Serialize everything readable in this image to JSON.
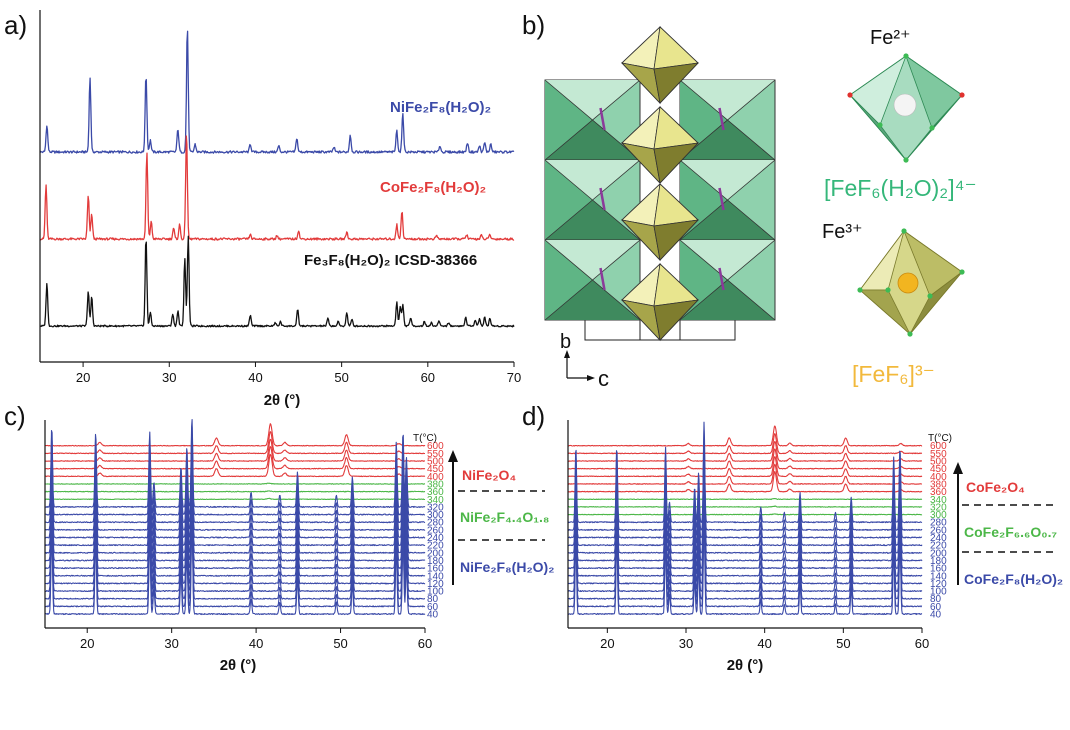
{
  "colors": {
    "blue": "#3b4aa8",
    "red": "#e23b3b",
    "green": "#4cb748",
    "black": "#111111",
    "teal": "#35b77a",
    "gold": "#f2b93c"
  },
  "panel_labels": {
    "a": "a)",
    "b": "b)",
    "c": "c)",
    "d": "d)"
  },
  "panel_a": {
    "xlabel": "2θ (°)",
    "labels": {
      "blue": "NiFe₂F₈(H₂O)₂",
      "red": "CoFe₂F₈(H₂O)₂",
      "black": "Fe₃F₈(H₂O)₂ ICSD-38366"
    }
  },
  "panel_b": {
    "axis_b": "b",
    "axis_c": "c",
    "fe2_label": "Fe²⁺",
    "fe3_label": "Fe³⁺",
    "fe2_formula": "[FeF₆(H₂O)₂]⁴⁻",
    "fe3_formula": "[FeF₆]³⁻"
  },
  "panel_c": {
    "xlabel": "2θ (°)",
    "temp_header": "T(°C)",
    "phase_labels": {
      "top": "NiFe₂O₄",
      "mid": "NiFe₂F₄.₄O₁.₈",
      "bottom": "NiFe₂F₈(H₂O)₂"
    }
  },
  "panel_d": {
    "xlabel": "2θ (°)",
    "temp_header": "T(°C)",
    "phase_labels": {
      "top": "CoFe₂O₄",
      "mid": "CoFe₂F₆.₆O₀.₇",
      "bottom": "CoFe₂F₈(H₂O)₂"
    }
  },
  "chart_data": [
    {
      "type": "line",
      "panel": "a",
      "xlabel": "2θ (°)",
      "xlim": [
        15,
        70
      ],
      "xticks": [
        20,
        30,
        40,
        50,
        60,
        70
      ],
      "series": [
        {
          "name": "NiFe₂F₈(H₂O)₂",
          "color": "#3b4aa8",
          "peaks": [
            [
              15.8,
              0.35
            ],
            [
              20.8,
              0.95
            ],
            [
              27.3,
              1.0
            ],
            [
              27.8,
              0.15
            ],
            [
              31.0,
              0.3
            ],
            [
              32.1,
              1.6
            ],
            [
              33.0,
              0.1
            ],
            [
              39.4,
              0.1
            ],
            [
              42.7,
              0.08
            ],
            [
              44.8,
              0.18
            ],
            [
              49.1,
              0.06
            ],
            [
              51.0,
              0.22
            ],
            [
              56.4,
              0.28
            ],
            [
              57.1,
              0.5
            ],
            [
              61.4,
              0.08
            ],
            [
              64.6,
              0.12
            ],
            [
              66.0,
              0.08
            ],
            [
              66.6,
              0.12
            ],
            [
              67.3,
              0.1
            ]
          ]
        },
        {
          "name": "CoFe₂F₈(H₂O)₂",
          "color": "#e23b3b",
          "peaks": [
            [
              15.7,
              0.75
            ],
            [
              20.6,
              0.6
            ],
            [
              21.0,
              0.35
            ],
            [
              27.4,
              1.2
            ],
            [
              27.9,
              0.25
            ],
            [
              30.5,
              0.15
            ],
            [
              31.2,
              0.2
            ],
            [
              32.0,
              1.5
            ],
            [
              39.4,
              0.06
            ],
            [
              42.5,
              0.05
            ],
            [
              45.0,
              0.12
            ],
            [
              50.6,
              0.1
            ],
            [
              56.4,
              0.2
            ],
            [
              57.0,
              0.4
            ],
            [
              61.0,
              0.05
            ],
            [
              64.5,
              0.06
            ],
            [
              66.2,
              0.05
            ],
            [
              67.2,
              0.06
            ]
          ]
        },
        {
          "name": "Fe₃F₈(H₂O)₂ ICSD-38366",
          "color": "#111111",
          "peaks": [
            [
              15.8,
              0.8
            ],
            [
              20.6,
              0.65
            ],
            [
              21.0,
              0.55
            ],
            [
              27.3,
              1.65
            ],
            [
              27.8,
              0.25
            ],
            [
              30.4,
              0.22
            ],
            [
              31.0,
              0.28
            ],
            [
              31.8,
              1.25
            ],
            [
              32.2,
              1.65
            ],
            [
              39.4,
              0.2
            ],
            [
              42.3,
              0.06
            ],
            [
              42.9,
              0.08
            ],
            [
              44.9,
              0.3
            ],
            [
              48.4,
              0.14
            ],
            [
              49.6,
              0.08
            ],
            [
              50.6,
              0.25
            ],
            [
              51.2,
              0.12
            ],
            [
              56.4,
              0.45
            ],
            [
              56.8,
              0.35
            ],
            [
              57.1,
              0.4
            ],
            [
              58.0,
              0.15
            ],
            [
              59.6,
              0.08
            ],
            [
              60.4,
              0.06
            ],
            [
              61.3,
              0.1
            ],
            [
              62.4,
              0.06
            ],
            [
              64.4,
              0.16
            ],
            [
              65.5,
              0.12
            ],
            [
              66.0,
              0.14
            ],
            [
              66.6,
              0.16
            ],
            [
              67.2,
              0.14
            ]
          ]
        }
      ]
    },
    {
      "type": "line",
      "panel": "c",
      "xlabel": "2θ (°)",
      "xlim": [
        15,
        60
      ],
      "xticks": [
        20,
        30,
        40,
        50,
        60
      ],
      "temperatures": [
        40,
        60,
        80,
        100,
        120,
        140,
        160,
        180,
        200,
        220,
        240,
        260,
        280,
        300,
        320,
        340,
        360,
        380,
        400,
        450,
        500,
        550,
        600
      ],
      "phase_by_temp": [
        "blue",
        "blue",
        "blue",
        "blue",
        "blue",
        "blue",
        "blue",
        "blue",
        "blue",
        "blue",
        "blue",
        "blue",
        "blue",
        "blue",
        "blue",
        "green",
        "green",
        "green",
        "red",
        "red",
        "red",
        "red",
        "red"
      ],
      "blue_peaks": [
        [
          15.8,
          0.8
        ],
        [
          21.0,
          0.75
        ],
        [
          27.4,
          0.75
        ],
        [
          27.9,
          0.25
        ],
        [
          31.1,
          0.4
        ],
        [
          31.8,
          0.6
        ],
        [
          32.4,
          0.9
        ],
        [
          39.4,
          0.15
        ],
        [
          42.8,
          0.12
        ],
        [
          44.9,
          0.35
        ],
        [
          49.5,
          0.12
        ],
        [
          51.4,
          0.3
        ],
        [
          56.6,
          0.65
        ],
        [
          57.4,
          0.75
        ],
        [
          57.8,
          0.5
        ]
      ],
      "green_peaks": [
        [
          41.5,
          0.04
        ]
      ],
      "red_peaks": [
        [
          21.5,
          0.15
        ],
        [
          35.3,
          0.35
        ],
        [
          41.7,
          1.0
        ],
        [
          43.4,
          0.15
        ],
        [
          50.7,
          0.5
        ],
        [
          56.9,
          0.1
        ]
      ]
    },
    {
      "type": "line",
      "panel": "d",
      "xlabel": "2θ (°)",
      "xlim": [
        15,
        60
      ],
      "xticks": [
        20,
        30,
        40,
        50,
        60
      ],
      "temperatures": [
        40,
        60,
        80,
        100,
        120,
        140,
        160,
        180,
        200,
        220,
        240,
        260,
        280,
        300,
        320,
        340,
        360,
        380,
        400,
        450,
        500,
        550,
        600
      ],
      "phase_by_temp": [
        "blue",
        "blue",
        "blue",
        "blue",
        "blue",
        "blue",
        "blue",
        "blue",
        "blue",
        "blue",
        "blue",
        "blue",
        "blue",
        "green",
        "green",
        "green",
        "red",
        "red",
        "red",
        "red",
        "red",
        "red",
        "red"
      ],
      "blue_peaks": [
        [
          16.0,
          0.75
        ],
        [
          21.2,
          0.75
        ],
        [
          27.4,
          0.75
        ],
        [
          27.9,
          0.2
        ],
        [
          31.1,
          0.35
        ],
        [
          31.6,
          0.5
        ],
        [
          32.3,
          1.0
        ],
        [
          39.5,
          0.15
        ],
        [
          42.5,
          0.1
        ],
        [
          44.5,
          0.3
        ],
        [
          49.0,
          0.1
        ],
        [
          51.0,
          0.25
        ],
        [
          56.4,
          0.65
        ],
        [
          57.2,
          0.75
        ]
      ],
      "green_peaks": [
        [
          41.3,
          0.03
        ]
      ],
      "red_peaks": [
        [
          30.3,
          0.1
        ],
        [
          35.5,
          0.35
        ],
        [
          41.3,
          0.9
        ],
        [
          43.2,
          0.12
        ],
        [
          50.3,
          0.35
        ],
        [
          57.3,
          0.1
        ]
      ]
    }
  ]
}
